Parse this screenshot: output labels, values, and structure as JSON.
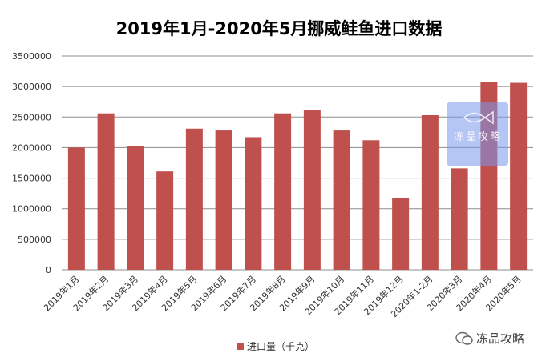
{
  "chart_data": {
    "type": "bar",
    "title": "2019年1月-2020年5月挪威鲑鱼进口数据",
    "categories": [
      "2019年1月",
      "2019年2月",
      "2019年3月",
      "2019年4月",
      "2019年5月",
      "2019年6月",
      "2019年7月",
      "2019年8月",
      "2019年9月",
      "2019年10月",
      "2019年11月",
      "2019年12月",
      "2020年1-2月",
      "2020年3月",
      "2020年4月",
      "2020年5月"
    ],
    "series": [
      {
        "name": "进口量（千克）",
        "values": [
          2000000,
          2560000,
          2030000,
          1610000,
          2310000,
          2280000,
          2170000,
          2560000,
          2610000,
          2280000,
          2120000,
          1180000,
          2530000,
          1660000,
          3080000,
          3060000
        ]
      }
    ],
    "ylim": [
      0,
      3500000
    ],
    "yticks": [
      "0",
      "500000",
      "1000000",
      "1500000",
      "2000000",
      "2500000",
      "3000000",
      "3500000"
    ],
    "ytick_values": [
      0,
      500000,
      1000000,
      1500000,
      2000000,
      2500000,
      3000000,
      3500000
    ],
    "legend_position": "bottom",
    "bar_color": "#c0504d",
    "grid_color": "#8c8c8c"
  },
  "watermark": {
    "text": "冻品攻略"
  },
  "brand": {
    "text": "冻品攻略"
  }
}
